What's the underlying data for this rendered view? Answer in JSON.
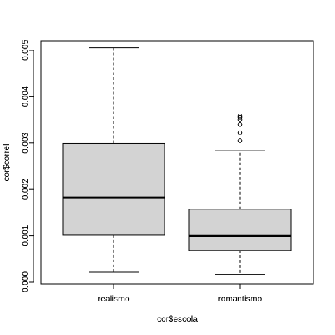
{
  "chart_data": {
    "type": "boxplot",
    "title": "",
    "xlabel": "cor$escola",
    "ylabel": "cor$correl",
    "categories": [
      "realismo",
      "romantismo"
    ],
    "ylim": [
      0,
      0.0051
    ],
    "yticks": [
      0.0,
      0.001,
      0.002,
      0.003,
      0.004,
      0.005
    ],
    "ytick_labels": [
      "0.000",
      "0.001",
      "0.002",
      "0.003",
      "0.004",
      "0.005"
    ],
    "boxes": [
      {
        "name": "realismo",
        "whisker_low": 0.00021,
        "q1": 0.00101,
        "median": 0.00182,
        "q3": 0.00299,
        "whisker_high": 0.00505,
        "outliers": []
      },
      {
        "name": "romantismo",
        "whisker_low": 0.00016,
        "q1": 0.00068,
        "median": 0.00099,
        "q3": 0.00157,
        "whisker_high": 0.00283,
        "outliers": [
          0.00305,
          0.00322,
          0.0034,
          0.0035,
          0.00355,
          0.00358
        ]
      }
    ],
    "colors": {
      "box_fill": "#d3d3d3",
      "stroke": "#000000"
    },
    "grid": false,
    "legend": "none"
  }
}
